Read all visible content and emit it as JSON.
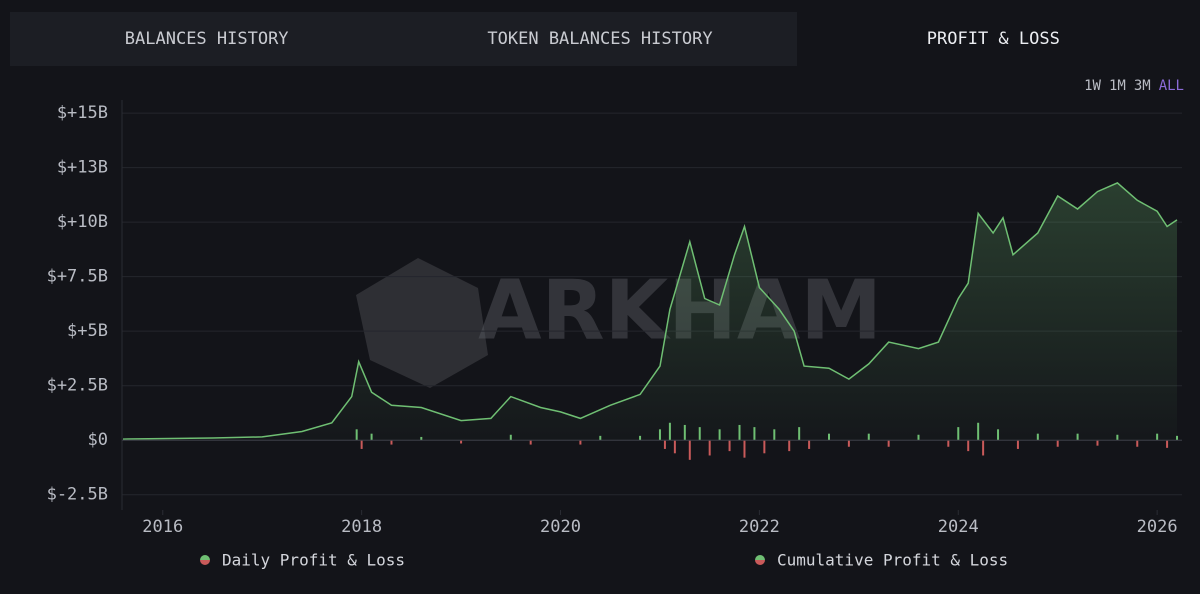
{
  "tabs": [
    "BALANCES HISTORY",
    "TOKEN BALANCES HISTORY",
    "PROFIT & LOSS"
  ],
  "active_tab": 2,
  "ranges": [
    "1W",
    "1M",
    "3M",
    "ALL"
  ],
  "active_range": 3,
  "chart_data": {
    "type": "line",
    "watermark": "ARKHAM",
    "xlim": [
      2015.59,
      2026.25
    ],
    "xticks": [
      2016,
      2018,
      2020,
      2022,
      2024,
      2026
    ],
    "ylim": [
      -3.2,
      15.6
    ],
    "yticks": [
      {
        "value": -2.5,
        "label": "$-2.5B"
      },
      {
        "value": 0,
        "label": "$0"
      },
      {
        "value": 2.5,
        "label": "$+2.5B"
      },
      {
        "value": 5,
        "label": "$+5B"
      },
      {
        "value": 7.5,
        "label": "$+7.5B"
      },
      {
        "value": 10,
        "label": "$+10B"
      },
      {
        "value": 12.5,
        "label": "$+13B"
      },
      {
        "value": 15,
        "label": "$+15B"
      }
    ],
    "grid": true,
    "series": [
      {
        "name": "Daily Profit & Loss",
        "type": "bar",
        "color": "#6fbf73",
        "negative_color": "#c95a5a",
        "x": [
          2017.95,
          2018.0,
          2018.1,
          2018.3,
          2018.6,
          2019.0,
          2019.5,
          2019.7,
          2020.2,
          2020.4,
          2020.8,
          2021.0,
          2021.05,
          2021.1,
          2021.15,
          2021.25,
          2021.3,
          2021.4,
          2021.5,
          2021.6,
          2021.7,
          2021.8,
          2021.85,
          2021.95,
          2022.05,
          2022.15,
          2022.3,
          2022.4,
          2022.5,
          2022.7,
          2022.9,
          2023.1,
          2023.3,
          2023.6,
          2023.9,
          2024.0,
          2024.1,
          2024.2,
          2024.25,
          2024.4,
          2024.6,
          2024.8,
          2025.0,
          2025.2,
          2025.4,
          2025.6,
          2025.8,
          2026.0,
          2026.1,
          2026.2
        ],
        "values": [
          0.5,
          -0.4,
          0.3,
          -0.2,
          0.15,
          -0.15,
          0.25,
          -0.2,
          -0.2,
          0.2,
          0.2,
          0.5,
          -0.4,
          0.8,
          -0.6,
          0.7,
          -0.9,
          0.6,
          -0.7,
          0.5,
          -0.5,
          0.7,
          -0.8,
          0.6,
          -0.6,
          0.5,
          -0.5,
          0.6,
          -0.4,
          0.3,
          -0.3,
          0.3,
          -0.3,
          0.25,
          -0.3,
          0.6,
          -0.5,
          0.8,
          -0.7,
          0.5,
          -0.4,
          0.3,
          -0.3,
          0.3,
          -0.25,
          0.25,
          -0.3,
          0.3,
          -0.35,
          0.2
        ]
      },
      {
        "name": "Cumulative Profit & Loss",
        "type": "line",
        "color": "#6fbf73",
        "x": [
          2015.6,
          2016.5,
          2017.0,
          2017.4,
          2017.7,
          2017.9,
          2017.97,
          2018.1,
          2018.3,
          2018.6,
          2019.0,
          2019.3,
          2019.5,
          2019.8,
          2020.0,
          2020.2,
          2020.5,
          2020.8,
          2021.0,
          2021.1,
          2021.3,
          2021.45,
          2021.6,
          2021.75,
          2021.85,
          2022.0,
          2022.2,
          2022.35,
          2022.45,
          2022.7,
          2022.9,
          2023.1,
          2023.3,
          2023.6,
          2023.8,
          2024.0,
          2024.1,
          2024.2,
          2024.35,
          2024.45,
          2024.55,
          2024.8,
          2025.0,
          2025.2,
          2025.4,
          2025.6,
          2025.8,
          2026.0,
          2026.1,
          2026.2
        ],
        "values": [
          0.05,
          0.1,
          0.15,
          0.4,
          0.8,
          2.0,
          3.6,
          2.2,
          1.6,
          1.5,
          0.9,
          1.0,
          2.0,
          1.5,
          1.3,
          1.0,
          1.6,
          2.1,
          3.4,
          6.0,
          9.1,
          6.5,
          6.2,
          8.5,
          9.8,
          7.0,
          6.0,
          5.0,
          3.4,
          3.3,
          2.8,
          3.5,
          4.5,
          4.2,
          4.5,
          6.5,
          7.2,
          10.4,
          9.5,
          10.2,
          8.5,
          9.5,
          11.2,
          10.6,
          11.4,
          11.8,
          11.0,
          10.5,
          9.8,
          10.1
        ]
      }
    ]
  }
}
